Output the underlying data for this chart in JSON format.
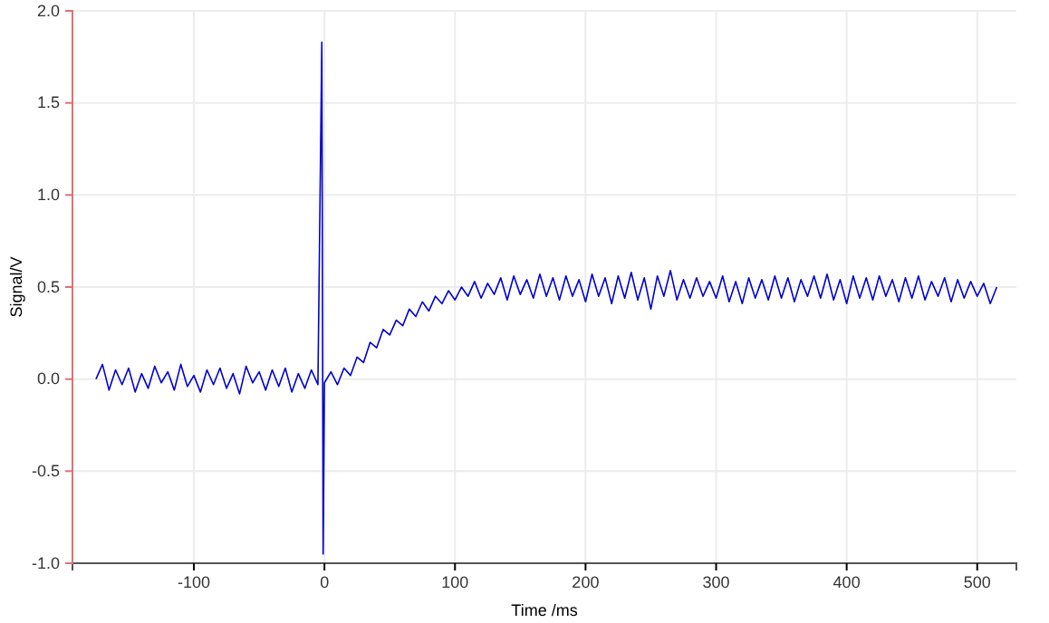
{
  "chart_data": {
    "type": "line",
    "xlabel": "Time /ms",
    "ylabel": "Signal/V",
    "xlim": [
      -193,
      530
    ],
    "ylim": [
      -1.0,
      2.0
    ],
    "xticks": [
      -100,
      0,
      100,
      200,
      300,
      400,
      500
    ],
    "yticks": [
      {
        "value": -1.0,
        "label": "-1.0"
      },
      {
        "value": -0.5,
        "label": "-0.5"
      },
      {
        "value": 0,
        "label": "0.0"
      },
      {
        "value": 0.5,
        "label": "0.5"
      },
      {
        "value": 1.0,
        "label": "1.0"
      },
      {
        "value": 1.5,
        "label": "1.5"
      },
      {
        "value": 2.0,
        "label": "2.0"
      }
    ],
    "grid": true,
    "marker": "none",
    "line_style": "solid",
    "series": [
      {
        "color": "#0000cc",
        "x": [
          -175,
          -170,
          -165,
          -160,
          -155,
          -150,
          -145,
          -140,
          -135,
          -130,
          -125,
          -120,
          -115,
          -110,
          -105,
          -100,
          -95,
          -90,
          -85,
          -80,
          -75,
          -70,
          -65,
          -60,
          -55,
          -50,
          -45,
          -40,
          -35,
          -30,
          -25,
          -20,
          -15,
          -10,
          -5,
          -2,
          -1,
          0,
          5,
          10,
          15,
          20,
          25,
          30,
          35,
          40,
          45,
          50,
          55,
          60,
          65,
          70,
          75,
          80,
          85,
          90,
          95,
          100,
          105,
          110,
          115,
          120,
          125,
          130,
          135,
          140,
          145,
          150,
          155,
          160,
          165,
          170,
          175,
          180,
          185,
          190,
          195,
          200,
          205,
          210,
          215,
          220,
          225,
          230,
          235,
          240,
          245,
          250,
          255,
          260,
          265,
          270,
          275,
          280,
          285,
          290,
          295,
          300,
          305,
          310,
          315,
          320,
          325,
          330,
          335,
          340,
          345,
          350,
          355,
          360,
          365,
          370,
          375,
          380,
          385,
          390,
          395,
          400,
          405,
          410,
          415,
          420,
          425,
          430,
          435,
          440,
          445,
          450,
          455,
          460,
          465,
          470,
          475,
          480,
          485,
          490,
          495,
          500,
          505,
          510,
          515
        ],
        "values": [
          0.0,
          0.08,
          -0.06,
          0.05,
          -0.03,
          0.06,
          -0.07,
          0.03,
          -0.05,
          0.07,
          -0.02,
          0.04,
          -0.06,
          0.08,
          -0.04,
          0.02,
          -0.07,
          0.05,
          -0.03,
          0.06,
          -0.05,
          0.03,
          -0.08,
          0.07,
          -0.02,
          0.04,
          -0.06,
          0.05,
          -0.04,
          0.06,
          -0.07,
          0.03,
          -0.05,
          0.05,
          -0.03,
          1.83,
          -0.95,
          -0.02,
          0.04,
          -0.03,
          0.06,
          0.02,
          0.12,
          0.09,
          0.2,
          0.17,
          0.27,
          0.24,
          0.32,
          0.29,
          0.38,
          0.34,
          0.42,
          0.37,
          0.45,
          0.41,
          0.48,
          0.43,
          0.5,
          0.45,
          0.53,
          0.44,
          0.52,
          0.46,
          0.55,
          0.43,
          0.56,
          0.46,
          0.54,
          0.44,
          0.57,
          0.45,
          0.55,
          0.43,
          0.56,
          0.45,
          0.54,
          0.42,
          0.57,
          0.45,
          0.55,
          0.41,
          0.56,
          0.44,
          0.58,
          0.43,
          0.55,
          0.38,
          0.56,
          0.45,
          0.59,
          0.43,
          0.54,
          0.44,
          0.55,
          0.45,
          0.53,
          0.44,
          0.56,
          0.42,
          0.53,
          0.41,
          0.55,
          0.44,
          0.54,
          0.43,
          0.56,
          0.44,
          0.55,
          0.42,
          0.54,
          0.45,
          0.56,
          0.44,
          0.57,
          0.43,
          0.54,
          0.41,
          0.56,
          0.44,
          0.55,
          0.43,
          0.56,
          0.45,
          0.54,
          0.42,
          0.55,
          0.44,
          0.56,
          0.43,
          0.53,
          0.45,
          0.55,
          0.42,
          0.54,
          0.44,
          0.53,
          0.45,
          0.52,
          0.41,
          0.5
        ]
      }
    ]
  }
}
